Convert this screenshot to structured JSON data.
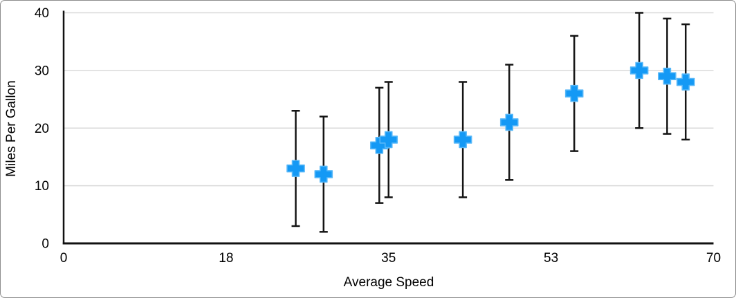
{
  "chart_data": {
    "type": "scatter",
    "title": "",
    "xlabel": "Average Speed",
    "ylabel": "Miles Per Gallon",
    "xlim": [
      0,
      70
    ],
    "ylim": [
      0,
      40
    ],
    "x_ticks": [
      {
        "pos": 0,
        "label": "0"
      },
      {
        "pos": 17.5,
        "label": "18"
      },
      {
        "pos": 35,
        "label": "35"
      },
      {
        "pos": 52.5,
        "label": "53"
      },
      {
        "pos": 70,
        "label": "70"
      }
    ],
    "y_ticks": [
      {
        "pos": 0,
        "label": "0"
      },
      {
        "pos": 10,
        "label": "10"
      },
      {
        "pos": 20,
        "label": "20"
      },
      {
        "pos": 30,
        "label": "30"
      },
      {
        "pos": 40,
        "label": "40"
      }
    ],
    "y_gridlines": [
      10,
      20,
      30,
      40
    ],
    "grid": "horizontal-only",
    "legend": "none",
    "series": [
      {
        "name": "Miles Per Gallon",
        "marker": "plus",
        "error_bars": "y symmetric",
        "points": [
          {
            "x": 25,
            "y": 13,
            "y_err": 10
          },
          {
            "x": 28,
            "y": 12,
            "y_err": 10
          },
          {
            "x": 34,
            "y": 17,
            "y_err": 10
          },
          {
            "x": 35,
            "y": 18,
            "y_err": 10
          },
          {
            "x": 43,
            "y": 18,
            "y_err": 10
          },
          {
            "x": 48,
            "y": 21,
            "y_err": 10
          },
          {
            "x": 55,
            "y": 26,
            "y_err": 10
          },
          {
            "x": 62,
            "y": 30,
            "y_err": 10
          },
          {
            "x": 65,
            "y": 29,
            "y_err": 10
          },
          {
            "x": 67,
            "y": 28,
            "y_err": 10
          }
        ]
      }
    ],
    "colors": {
      "marker_fill": "#1499F5",
      "marker_outline": "#58B8F8",
      "error_bar": "#141414",
      "axis": "#111111",
      "gridline": "#D9D9D9",
      "text": "#000000",
      "frame_border": "#8D8D8D",
      "background": "#FFFFFF"
    }
  }
}
